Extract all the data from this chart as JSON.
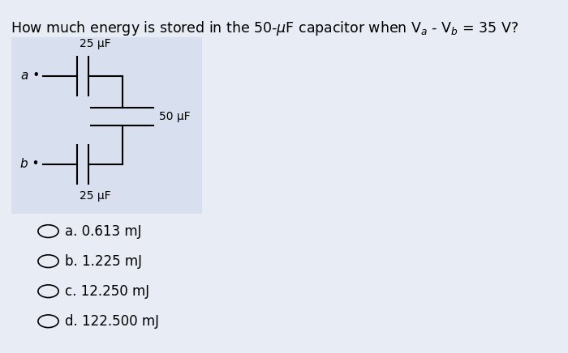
{
  "title_main": "How much energy is stored in the 50-μF capacitor when V",
  "title_sub_a": "a",
  "title_mid": " - V",
  "title_sub_b": "b",
  "title_end": " = 35 V?",
  "title_fontsize": 12.5,
  "bg_color": "#e8ecf4",
  "circuit_bg": "#d8e0ef",
  "options": [
    "a. 0.613 mJ",
    "b. 1.225 mJ",
    "c. 12.250 mJ",
    "d. 122.500 mJ"
  ],
  "options_fontsize": 12,
  "circuit_label_a": "a",
  "circuit_label_b": "b",
  "cap_top_label": "25 μF",
  "cap_mid_label": "50 μF",
  "cap_bot_label": "25 μF"
}
